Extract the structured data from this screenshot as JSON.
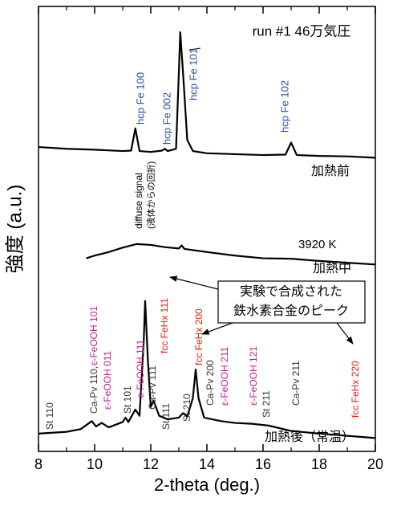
{
  "chart_data": {
    "type": "line",
    "title": "run #1 46万気圧",
    "xlabel": "2-theta (deg.)",
    "ylabel": "強度 (a.u.)",
    "xlim": [
      8,
      20
    ],
    "xticks": [
      8,
      10,
      12,
      14,
      16,
      18,
      20
    ],
    "ylim": [
      0,
      100
    ],
    "series": [
      {
        "name": "加熱前",
        "color": "#000000",
        "x": [
          8,
          9,
          10,
          11,
          11.3,
          11.45,
          11.6,
          12,
          12.4,
          12.5,
          12.6,
          12.9,
          13.0,
          13.05,
          13.15,
          13.3,
          13.5,
          14,
          15,
          16,
          16.8,
          17.0,
          17.2,
          18,
          19,
          20
        ],
        "values": [
          68.4,
          68.0,
          67.8,
          67.5,
          67.6,
          72.6,
          67.5,
          67.3,
          67.6,
          68.0,
          67.5,
          68.0,
          85,
          94.2,
          85,
          70,
          67.5,
          67.0,
          66.8,
          66.6,
          66.7,
          69.4,
          66.6,
          66.4,
          66.3,
          66.0
        ]
      },
      {
        "name": "加熱中",
        "color": "#000000",
        "x": [
          9.7,
          10,
          10.5,
          11,
          11.5,
          12,
          12.5,
          13,
          13.1,
          13.2,
          14,
          15,
          16,
          17,
          18,
          19,
          20
        ],
        "values": [
          43.4,
          44.0,
          44.8,
          45.8,
          46.6,
          46.4,
          45.9,
          45.6,
          46.3,
          45.5,
          44.8,
          44.0,
          43.4,
          43.3,
          42.8,
          42.4,
          42.0
        ]
      },
      {
        "name": "加熱後（常温）",
        "color": "#000000",
        "x": [
          8,
          8.5,
          9,
          9.5,
          9.9,
          10.05,
          10.25,
          10.5,
          11,
          11.1,
          11.2,
          11.45,
          11.6,
          11.75,
          11.8,
          11.9,
          12.0,
          12.1,
          12.3,
          12.6,
          13.0,
          13.15,
          13.3,
          13.5,
          13.6,
          13.7,
          13.9,
          14.5,
          15,
          15.6,
          16.2,
          17,
          18,
          19,
          20
        ],
        "values": [
          4.0,
          4.2,
          4.4,
          5.0,
          6.8,
          5.6,
          6.4,
          5.4,
          6.6,
          7.6,
          6.6,
          9.4,
          8.0,
          25,
          33.8,
          20,
          10,
          11.4,
          8,
          7.2,
          7.6,
          8.6,
          7.8,
          12,
          18.4,
          12,
          7.6,
          6.8,
          6.4,
          6.2,
          5.8,
          4.6,
          4.0,
          3.5,
          3.0
        ]
      }
    ],
    "annotations": [
      {
        "text": "hcp Fe 100",
        "color": "#2b4ba8"
      },
      {
        "text": "hcp Fe 002",
        "color": "#2b4ba8"
      },
      {
        "text": "hcp Fe 101",
        "color": "#2b4ba8"
      },
      {
        "text": "hcp Fe 102",
        "color": "#2b4ba8"
      },
      {
        "text": "diffuse signal",
        "color": "#000000"
      },
      {
        "text": "(液体からの回折)",
        "color": "#000000"
      },
      {
        "text": "3920 K",
        "color": "#000000"
      },
      {
        "text": "St 110",
        "color": "#333333"
      },
      {
        "text": "Ca-Pv 110,",
        "color": "#333333"
      },
      {
        "text": "ε-FeOOH 101",
        "color": "#c0208a"
      },
      {
        "text": "ε-FeOOH 011",
        "color": "#c0208a"
      },
      {
        "text": "St 101",
        "color": "#333333"
      },
      {
        "text": "ε-FeOOH 111",
        "color": "#c0208a"
      },
      {
        "text": "Ca-Pv 111",
        "color": "#333333"
      },
      {
        "text": "fcc FeHx 111",
        "color": "#e02010"
      },
      {
        "text": "St 111",
        "color": "#333333"
      },
      {
        "text": "St 210",
        "color": "#333333"
      },
      {
        "text": "fcc FeHx 200",
        "color": "#e02010"
      },
      {
        "text": "Ca-Pv 200",
        "color": "#333333"
      },
      {
        "text": "ε-FeOOH 211",
        "color": "#c0208a"
      },
      {
        "text": "ε-FeOOH 121",
        "color": "#c0208a"
      },
      {
        "text": "St 211",
        "color": "#333333"
      },
      {
        "text": "Ca-Pv 211",
        "color": "#333333"
      },
      {
        "text": "fcc FeHx 220",
        "color": "#e02010"
      }
    ],
    "callout": [
      "実験で合成された",
      "鉄水素合金のピーク"
    ]
  }
}
